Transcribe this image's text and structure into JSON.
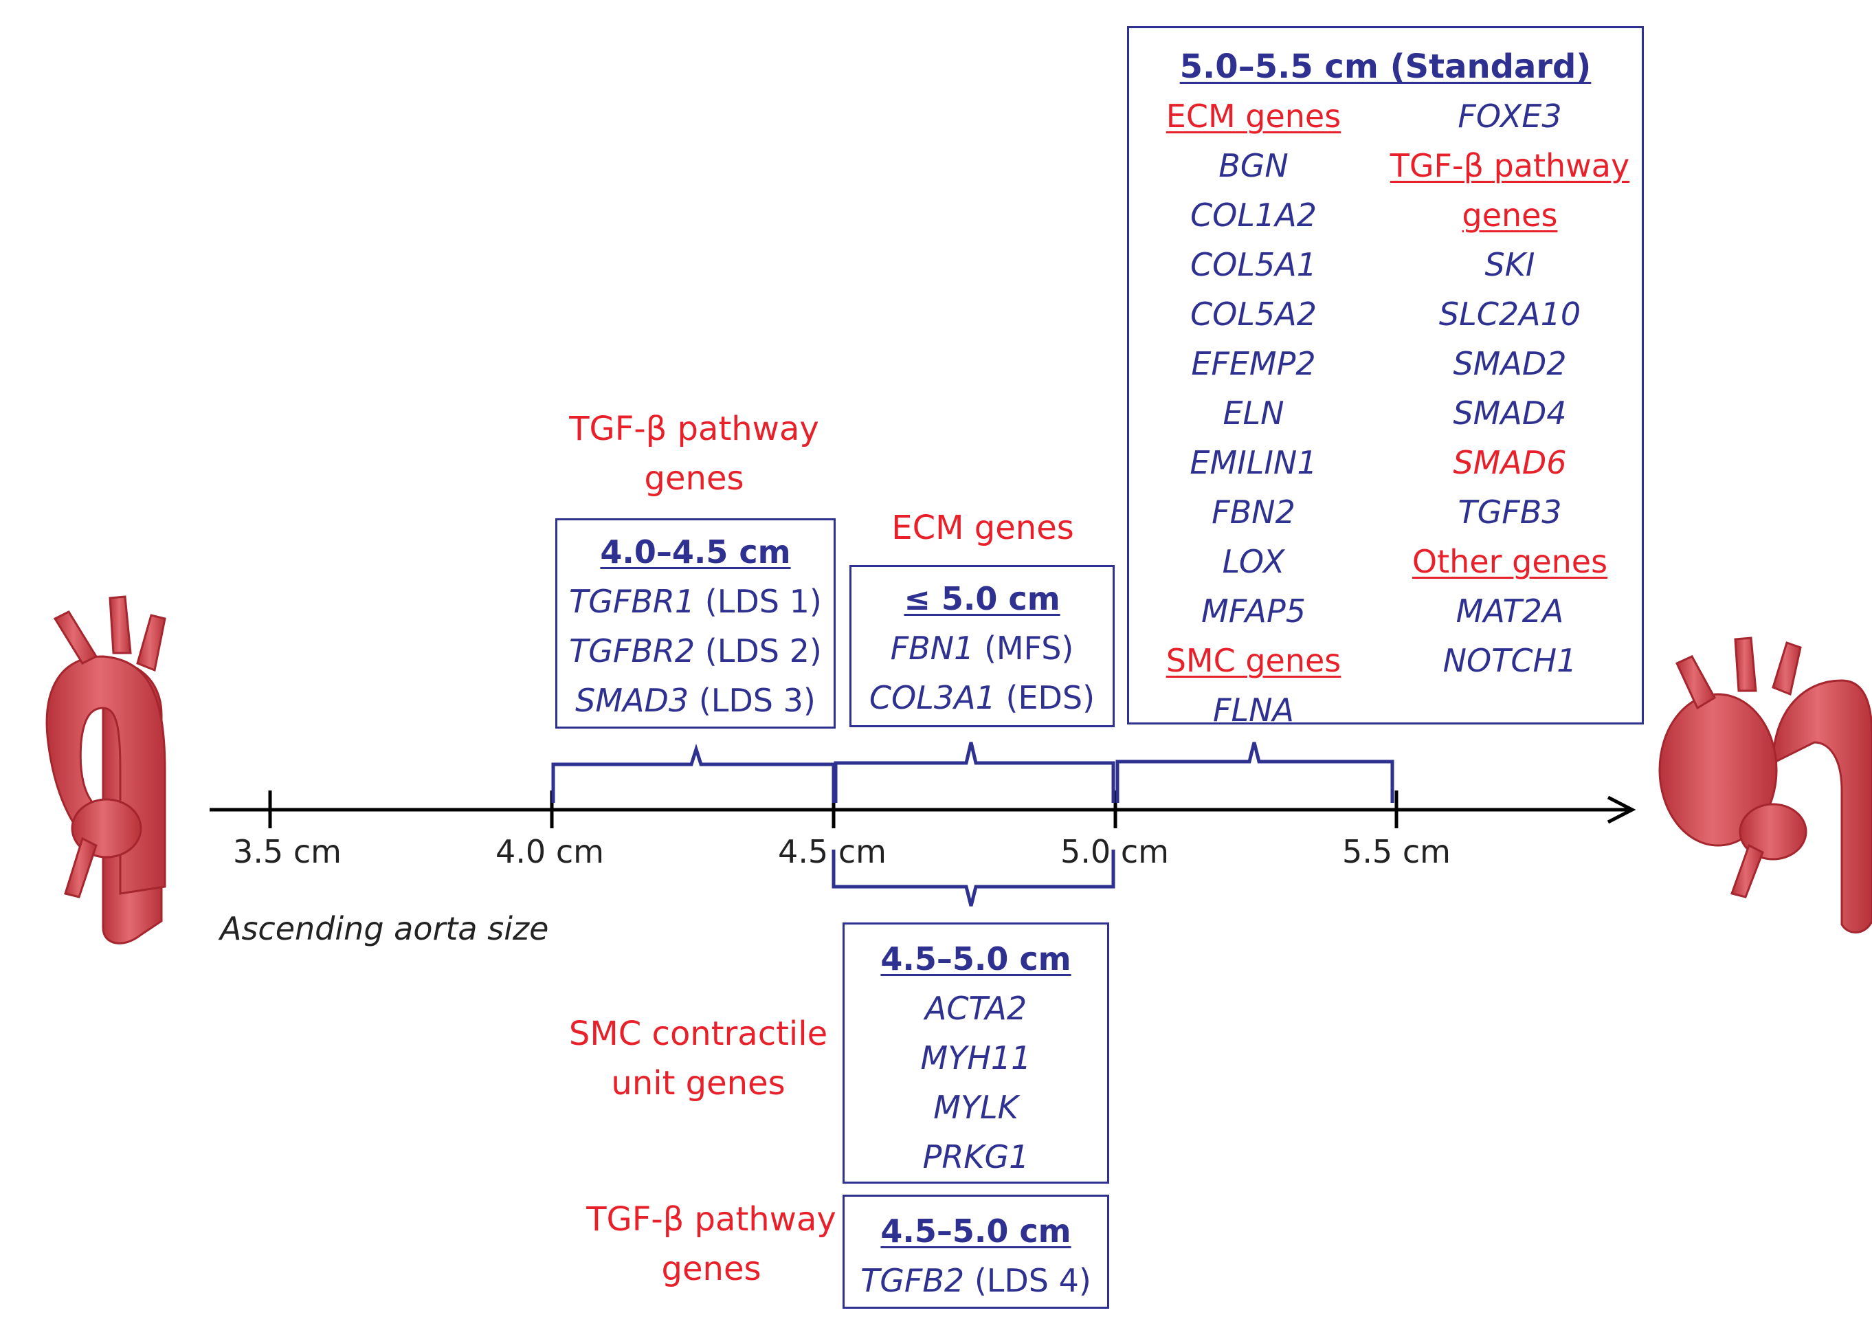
{
  "axis": {
    "label": "Ascending aorta size",
    "ticks": [
      "3.5 cm",
      "4.0 cm",
      "4.5 cm",
      "5.0 cm",
      "5.5 cm"
    ]
  },
  "groups": {
    "tgfb_top": {
      "category": [
        "TGF-β pathway",
        "genes"
      ],
      "range": "4.0–4.5 cm",
      "genes": [
        {
          "gene": "TGFBR1",
          "note": "(LDS 1)"
        },
        {
          "gene": "TGFBR2",
          "note": "(LDS 2)"
        },
        {
          "gene": "SMAD3",
          "note": "(LDS 3)"
        }
      ]
    },
    "ecm_mid": {
      "category": "ECM genes",
      "range": "≤ 5.0 cm",
      "genes": [
        {
          "gene": "FBN1",
          "note": "(MFS)"
        },
        {
          "gene": "COL3A1",
          "note": "(EDS)"
        }
      ]
    },
    "standard": {
      "title": "5.0–5.5 cm (Standard)",
      "left_col": {
        "ecm_header": "ECM genes",
        "ecm_genes": [
          "BGN",
          "COL1A2",
          "COL5A1",
          "COL5A2",
          "EFEMP2",
          "ELN",
          "EMILIN1",
          "FBN2",
          "LOX",
          "MFAP5"
        ],
        "smc_header": "SMC genes",
        "smc_genes": [
          "FLNA"
        ]
      },
      "right_col": {
        "top_gene": "FOXE3",
        "tgfb_header": [
          "TGF-β pathway",
          "genes"
        ],
        "tgfb_genes": [
          "SKI",
          "SLC2A10",
          "SMAD2",
          "SMAD4",
          "SMAD6",
          "TGFB3"
        ],
        "other_header": "Other genes",
        "other_genes": [
          "MAT2A",
          "NOTCH1"
        ]
      }
    },
    "smc_bottom": {
      "category": [
        "SMC contractile",
        "unit genes"
      ],
      "range": "4.5–5.0 cm",
      "genes": [
        "ACTA2",
        "MYH11",
        "MYLK",
        "PRKG1"
      ]
    },
    "tgfb_bottom": {
      "category": [
        "TGF-β pathway",
        "genes"
      ],
      "range": "4.5–5.0 cm",
      "genes": [
        {
          "gene": "TGFB2",
          "note": "(LDS 4)"
        }
      ]
    }
  },
  "colors": {
    "navy": "#2e3190",
    "red": "#e8202a",
    "aorta": "#d9525a"
  }
}
